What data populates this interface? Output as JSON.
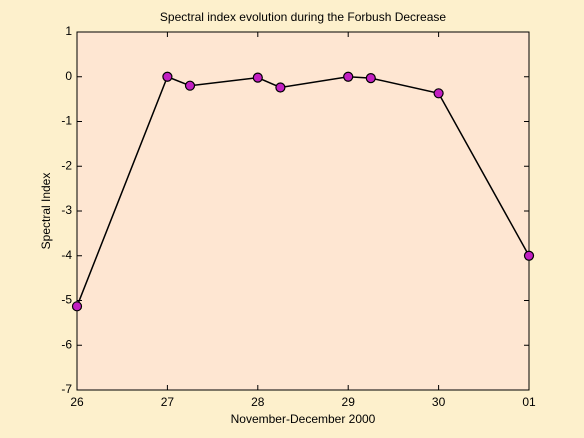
{
  "chart_data": {
    "type": "line",
    "title": "Spectral index evolution during the Forbush Decrease",
    "x_label": "November-December 2000",
    "y_label": "Spectral Index",
    "x": [
      26,
      27,
      27.25,
      28,
      28.25,
      29,
      29.25,
      30,
      31
    ],
    "series": [
      {
        "name": "Spectral Index",
        "color": "#000000",
        "marker_color": "#c21fc2",
        "values": [
          -5.13,
          0,
          -0.2,
          -0.02,
          -0.24,
          0,
          -0.03,
          -0.37,
          -4.0
        ]
      }
    ],
    "xlim": [
      26,
      31
    ],
    "xticks": [
      26,
      27,
      28,
      29,
      30,
      {
        "value": 31,
        "label": "01"
      }
    ],
    "ylim": [
      -7,
      1
    ],
    "yticks": [
      -7,
      -6,
      -5,
      -4,
      -3,
      -2,
      -1,
      0,
      1
    ],
    "plot_background": "#fee6d2"
  }
}
